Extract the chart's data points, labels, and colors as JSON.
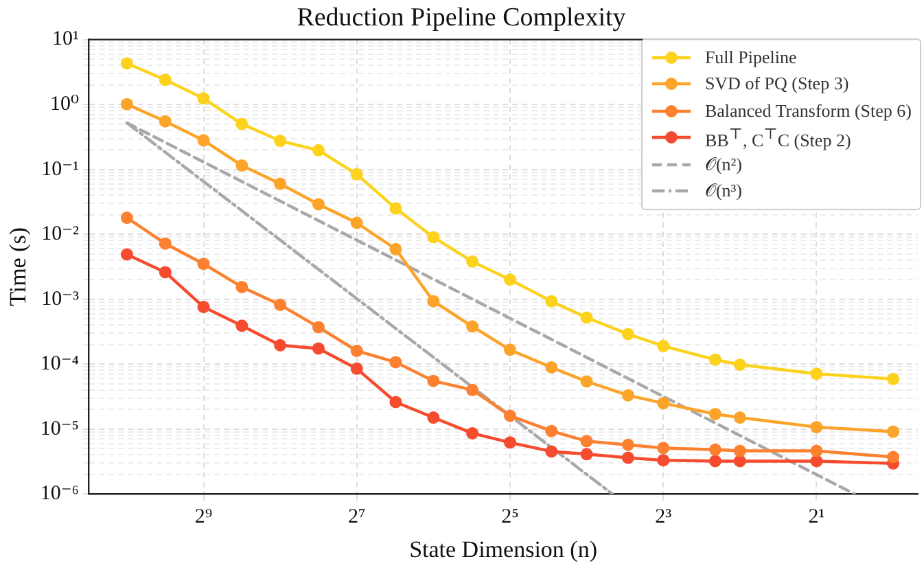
{
  "chart_data": {
    "type": "line",
    "title": "Reduction Pipeline Complexity",
    "xlabel": "State Dimension (n)",
    "ylabel": "Time (s)",
    "x": [
      1024,
      724,
      512,
      362,
      256,
      181,
      128,
      90,
      64,
      45,
      32,
      22,
      16,
      11,
      8,
      5,
      4,
      2,
      1
    ],
    "series": [
      {
        "name": "Full Pipeline",
        "color": "#fcd21c",
        "values": [
          4.3,
          2.4,
          1.24,
          0.5,
          0.275,
          0.197,
          0.084,
          0.025,
          0.009,
          0.0038,
          0.002,
          0.00093,
          0.00052,
          0.00029,
          0.00019,
          0.000117,
          9.8e-05,
          7.1e-05,
          5.9e-05
        ]
      },
      {
        "name": "SVD of PQ (Step 3)",
        "color": "#fca42a",
        "values": [
          1.01,
          0.55,
          0.28,
          0.115,
          0.06,
          0.029,
          0.015,
          0.0059,
          0.00093,
          0.00038,
          0.000166,
          8.9e-05,
          5.4e-05,
          3.3e-05,
          2.5e-05,
          1.7e-05,
          1.5e-05,
          1.07e-05,
          9.1e-06
        ]
      },
      {
        "name": "Balanced Transform (Step 6)",
        "color": "#fb8030",
        "values": [
          0.018,
          0.0072,
          0.0035,
          0.00154,
          0.00082,
          0.00037,
          0.00016,
          0.000107,
          5.5e-05,
          4e-05,
          1.6e-05,
          9.3e-06,
          6.5e-06,
          5.7e-06,
          5.1e-06,
          4.8e-06,
          4.6e-06,
          4.6e-06,
          3.7e-06
        ]
      },
      {
        "name": "BB$^{⊤}$, C$^{⊤}$C (Step 2)",
        "color": "#f54b2e",
        "values": [
          0.0049,
          0.0026,
          0.00076,
          0.00039,
          0.000195,
          0.000174,
          8.5e-05,
          2.6e-05,
          1.5e-05,
          8.6e-06,
          6.2e-06,
          4.5e-06,
          4.1e-06,
          3.6e-06,
          3.3e-06,
          3.2e-06,
          3.2e-06,
          3.2e-06,
          2.95e-06
        ]
      },
      {
        "name": "𝒪(n²)",
        "color": "#a8a8a8",
        "marker": "none",
        "line_style": "dashed",
        "x": [
          1024,
          1.42
        ],
        "values": [
          0.52,
          1e-06
        ]
      },
      {
        "name": "𝒪(n³)",
        "color": "#a8a8a8",
        "marker": "none",
        "line_style": "dashdot",
        "x": [
          1024,
          12.7
        ],
        "values": [
          0.52,
          1e-06
        ]
      }
    ],
    "marker": "circle",
    "log": "xy",
    "grid": true,
    "legend": "top right",
    "xlim": [
      1448,
      0.8
    ],
    "xticks": [
      {
        "value": 512,
        "label": "2⁹"
      },
      {
        "value": 128,
        "label": "2⁷"
      },
      {
        "value": 32,
        "label": "2⁵"
      },
      {
        "value": 8,
        "label": "2³"
      },
      {
        "value": 2,
        "label": "2¹"
      }
    ],
    "ylim": [
      1e-06,
      10
    ],
    "yticks": [
      {
        "value": 1e-06,
        "label": "10⁻⁶"
      },
      {
        "value": 2e-06,
        "label": null
      },
      {
        "value": 3e-06,
        "label": null
      },
      {
        "value": 4e-06,
        "label": null
      },
      {
        "value": 5e-06,
        "label": null
      },
      {
        "value": 6e-06,
        "label": null
      },
      {
        "value": 7e-06,
        "label": null
      },
      {
        "value": 8e-06,
        "label": null
      },
      {
        "value": 9e-06,
        "label": null
      },
      {
        "value": 1e-05,
        "label": "10⁻⁵"
      },
      {
        "value": 2e-05,
        "label": null
      },
      {
        "value": 3e-05,
        "label": null
      },
      {
        "value": 4e-05,
        "label": null
      },
      {
        "value": 5e-05,
        "label": null
      },
      {
        "value": 6e-05,
        "label": null
      },
      {
        "value": 7e-05,
        "label": null
      },
      {
        "value": 8e-05,
        "label": null
      },
      {
        "value": 9e-05,
        "label": null
      },
      {
        "value": 0.0001,
        "label": "10⁻⁴"
      },
      {
        "value": 0.0002,
        "label": null
      },
      {
        "value": 0.0003,
        "label": null
      },
      {
        "value": 0.0004,
        "label": null
      },
      {
        "value": 0.0005,
        "label": null
      },
      {
        "value": 0.0006,
        "label": null
      },
      {
        "value": 0.0007,
        "label": null
      },
      {
        "value": 0.0008,
        "label": null
      },
      {
        "value": 0.0009,
        "label": null
      },
      {
        "value": 0.001,
        "label": "10⁻³"
      },
      {
        "value": 0.002,
        "label": null
      },
      {
        "value": 0.003,
        "label": null
      },
      {
        "value": 0.004,
        "label": null
      },
      {
        "value": 0.005,
        "label": null
      },
      {
        "value": 0.006,
        "label": null
      },
      {
        "value": 0.007,
        "label": null
      },
      {
        "value": 0.008,
        "label": null
      },
      {
        "value": 0.009,
        "label": null
      },
      {
        "value": 0.01,
        "label": "10⁻²"
      },
      {
        "value": 0.02,
        "label": null
      },
      {
        "value": 0.03,
        "label": null
      },
      {
        "value": 0.04,
        "label": null
      },
      {
        "value": 0.05,
        "label": null
      },
      {
        "value": 0.06,
        "label": null
      },
      {
        "value": 0.07,
        "label": null
      },
      {
        "value": 0.08,
        "label": null
      },
      {
        "value": 0.09,
        "label": null
      },
      {
        "value": 0.1,
        "label": "10⁻¹"
      },
      {
        "value": 0.2,
        "label": null
      },
      {
        "value": 0.3,
        "label": null
      },
      {
        "value": 0.4,
        "label": null
      },
      {
        "value": 0.5,
        "label": null
      },
      {
        "value": 0.6,
        "label": null
      },
      {
        "value": 0.7,
        "label": null
      },
      {
        "value": 0.8,
        "label": null
      },
      {
        "value": 0.9,
        "label": null
      },
      {
        "value": 1,
        "label": "10⁰"
      },
      {
        "value": 2,
        "label": null
      },
      {
        "value": 3,
        "label": null
      },
      {
        "value": 4,
        "label": null
      },
      {
        "value": 5,
        "label": null
      },
      {
        "value": 6,
        "label": null
      },
      {
        "value": 7,
        "label": null
      },
      {
        "value": 8,
        "label": null
      },
      {
        "value": 9,
        "label": null
      },
      {
        "value": 10,
        "label": "10¹"
      }
    ]
  }
}
